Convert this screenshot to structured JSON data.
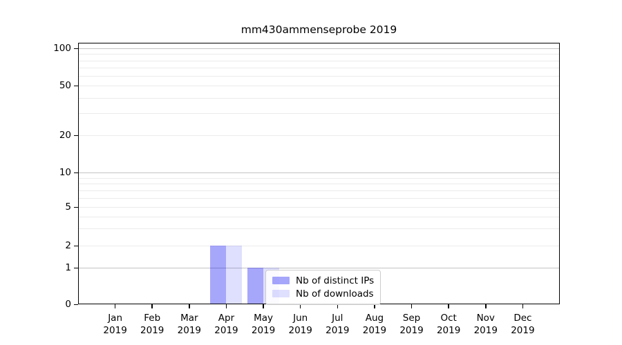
{
  "chart_data": {
    "type": "bar",
    "title": "mm430ammenseprobe 2019",
    "categories": [
      "Jan 2019",
      "Feb 2019",
      "Mar 2019",
      "Apr 2019",
      "May 2019",
      "Jun 2019",
      "Jul 2019",
      "Aug 2019",
      "Sep 2019",
      "Oct 2019",
      "Nov 2019",
      "Dec 2019"
    ],
    "series": [
      {
        "name": "Nb of distinct IPs",
        "color": "#0808f5",
        "alpha": 0.36,
        "values": [
          0,
          0,
          0,
          2,
          1,
          0,
          0,
          0,
          0,
          0,
          0,
          0
        ]
      },
      {
        "name": "Nb of downloads",
        "color": "#0808f5",
        "alpha": 0.13,
        "values": [
          0,
          0,
          0,
          2,
          1,
          0,
          0,
          0,
          0,
          0,
          0,
          0
        ]
      }
    ],
    "xlabel": "",
    "ylabel": "",
    "yscale": "symlog",
    "ylim": [
      0,
      100
    ],
    "yticks": [
      0,
      1,
      2,
      5,
      10,
      20,
      50,
      100
    ],
    "grid": true,
    "legend_position": "lower-center"
  },
  "colors": {
    "major_gridline": "#c3c3c3",
    "minor_gridline": "#ebebeb",
    "axis": "#000000",
    "legend_border": "#cccccc"
  }
}
